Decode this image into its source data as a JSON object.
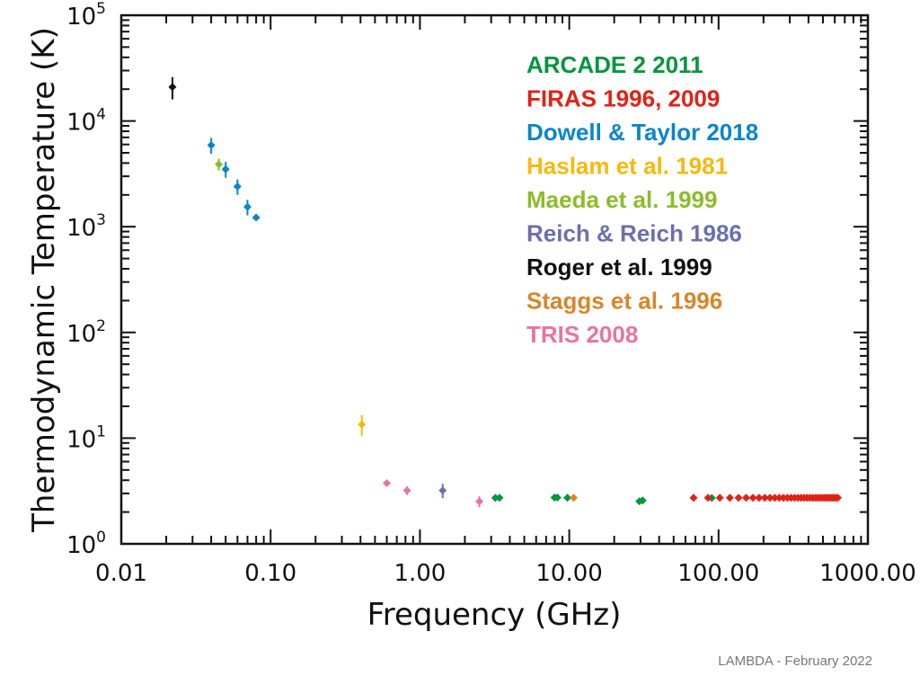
{
  "chart_data": {
    "type": "scatter",
    "title": "",
    "xlabel": "Frequency (GHz)",
    "ylabel": "Thermodynamic Temperature (K)",
    "xscale": "log",
    "yscale": "log",
    "xlim": [
      0.01,
      1000
    ],
    "ylim": [
      1,
      100000
    ],
    "x_tick_labels": [
      "0.01",
      "0.10",
      "1.00",
      "10.00",
      "100.00",
      "1000.00"
    ],
    "y_tick_labels": [
      {
        "base": "10",
        "exp": "0"
      },
      {
        "base": "10",
        "exp": "1"
      },
      {
        "base": "10",
        "exp": "2"
      },
      {
        "base": "10",
        "exp": "3"
      },
      {
        "base": "10",
        "exp": "4"
      },
      {
        "base": "10",
        "exp": "5"
      }
    ],
    "legend_position": "top-right",
    "series": [
      {
        "name": "ARCADE 2  2011",
        "color": "#00963c",
        "points": [
          [
            3.2,
            2.72,
            0
          ],
          [
            3.41,
            2.73,
            0
          ],
          [
            7.97,
            2.74,
            0
          ],
          [
            8.33,
            2.74,
            0
          ],
          [
            9.72,
            2.73,
            0
          ],
          [
            29.5,
            2.53,
            0
          ],
          [
            31.0,
            2.57,
            0
          ],
          [
            90.0,
            2.72,
            0
          ]
        ]
      },
      {
        "name": "FIRAS  1996, 2009",
        "color": "#e02216",
        "points": [
          [
            68,
            2.725,
            0
          ],
          [
            85,
            2.725,
            0
          ],
          [
            102,
            2.725,
            0
          ],
          [
            119,
            2.725,
            0
          ],
          [
            136,
            2.725,
            0
          ],
          [
            153,
            2.725,
            0
          ],
          [
            170,
            2.725,
            0
          ],
          [
            187,
            2.725,
            0
          ],
          [
            204,
            2.725,
            0
          ],
          [
            221,
            2.725,
            0
          ],
          [
            238,
            2.725,
            0
          ],
          [
            255,
            2.725,
            0
          ],
          [
            272,
            2.725,
            0
          ],
          [
            289,
            2.725,
            0
          ],
          [
            306,
            2.725,
            0
          ],
          [
            323,
            2.725,
            0
          ],
          [
            340,
            2.725,
            0
          ],
          [
            357,
            2.725,
            0
          ],
          [
            374,
            2.725,
            0
          ],
          [
            391,
            2.725,
            0
          ],
          [
            408,
            2.725,
            0
          ],
          [
            425,
            2.725,
            0
          ],
          [
            442,
            2.725,
            0
          ],
          [
            459,
            2.725,
            0
          ],
          [
            476,
            2.725,
            0
          ],
          [
            493,
            2.725,
            0
          ],
          [
            510,
            2.725,
            0
          ],
          [
            527,
            2.725,
            0
          ],
          [
            544,
            2.725,
            0
          ],
          [
            561,
            2.725,
            0
          ],
          [
            578,
            2.725,
            0
          ],
          [
            595,
            2.725,
            0
          ],
          [
            612,
            2.725,
            0
          ],
          [
            629,
            2.725,
            0
          ]
        ]
      },
      {
        "name": "Dowell & Taylor 2018",
        "color": "#0a86c8",
        "points": [
          [
            0.04,
            5900,
            1000
          ],
          [
            0.05,
            3500,
            600
          ],
          [
            0.06,
            2400,
            400
          ],
          [
            0.07,
            1540,
            260
          ],
          [
            0.08,
            1220,
            0
          ]
        ]
      },
      {
        "name": "Haslam et al. 1981",
        "color": "#f6b90c",
        "points": [
          [
            0.408,
            13.5,
            3.0
          ]
        ]
      },
      {
        "name": "Maeda et al. 1999",
        "color": "#8cbc2a",
        "points": [
          [
            0.045,
            3900,
            500
          ]
        ]
      },
      {
        "name": "Reich & Reich  1986",
        "color": "#6b6fae",
        "points": [
          [
            1.42,
            3.2,
            0.5
          ]
        ]
      },
      {
        "name": "Roger et al. 1999",
        "color": "#111111",
        "points": [
          [
            0.022,
            21000,
            5000
          ]
        ]
      },
      {
        "name": "Staggs et al.  1996",
        "color": "#d8862a",
        "points": [
          [
            10.7,
            2.73,
            0
          ]
        ]
      },
      {
        "name": "TRIS 2008",
        "color": "#e8749e",
        "points": [
          [
            0.6,
            3.75,
            0
          ],
          [
            0.82,
            3.2,
            0.3
          ],
          [
            2.5,
            2.52,
            0.3
          ]
        ]
      }
    ]
  },
  "credit": "LAMBDA - February 2022"
}
